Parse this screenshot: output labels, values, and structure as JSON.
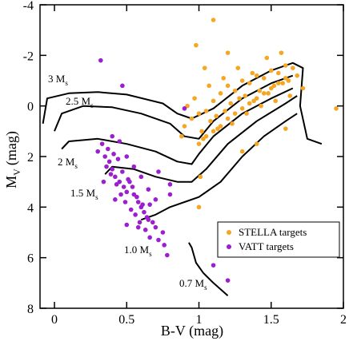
{
  "chart_data": {
    "type": "scatter",
    "xlabel": "B-V (mag)",
    "ylabel": {
      "text": "M",
      "sub": "V",
      "unit": "(mag)"
    },
    "xlim": [
      -0.1,
      2.0
    ],
    "ylim": [
      -4,
      8
    ],
    "y_inverted": true,
    "xticks": [
      0,
      0.5,
      1,
      1.5,
      2
    ],
    "yticks": [
      -4,
      -2,
      0,
      2,
      4,
      6,
      8
    ],
    "legend": "lower right",
    "series": [
      {
        "name": "STELLA targets",
        "color": "#f5a623",
        "x": [
          0.9,
          0.95,
          1.0,
          1.02,
          1.05,
          1.08,
          1.1,
          1.12,
          1.15,
          1.18,
          1.2,
          1.22,
          1.25,
          1.28,
          1.3,
          1.32,
          1.35,
          1.38,
          1.4,
          1.42,
          1.45,
          1.48,
          1.5,
          1.52,
          1.55,
          1.58,
          1.6,
          1.62,
          1.65,
          1.68,
          1.0,
          1.05,
          1.1,
          1.15,
          1.2,
          1.25,
          1.3,
          1.35,
          1.4,
          1.45,
          1.5,
          1.55,
          1.6,
          0.92,
          0.97,
          1.03,
          1.07,
          1.13,
          1.17,
          1.23,
          1.27,
          1.33,
          1.37,
          1.43,
          1.47,
          1.53,
          1.57,
          1.63,
          1.72,
          1.95,
          1.1,
          1.04,
          0.98,
          1.0,
          1.01,
          1.3,
          1.6,
          0.88,
          1.4,
          1.2
        ],
        "y": [
          0.8,
          0.5,
          0.3,
          1.0,
          0.2,
          0.6,
          -0.2,
          0.4,
          -0.5,
          0.2,
          -0.8,
          -0.1,
          -0.6,
          -0.3,
          -1.0,
          -0.4,
          -0.9,
          -0.2,
          -1.2,
          -0.6,
          -1.1,
          -0.5,
          -1.4,
          -0.8,
          -1.3,
          -0.9,
          -1.6,
          -1.0,
          -1.5,
          -1.2,
          1.5,
          1.2,
          1.0,
          0.8,
          0.5,
          0.3,
          0.1,
          -0.1,
          -0.3,
          -0.5,
          -0.7,
          -0.9,
          -1.1,
          0.0,
          -0.3,
          1.3,
          -0.8,
          0.9,
          -1.1,
          0.7,
          -1.5,
          0.3,
          -1.3,
          0.0,
          -1.9,
          -0.2,
          -2.1,
          -0.4,
          -0.7,
          0.1,
          -3.4,
          -1.5,
          -2.4,
          4.0,
          2.8,
          1.8,
          0.9,
          1.2,
          1.5,
          -2.1
        ]
      },
      {
        "name": "VATT targets",
        "color": "#9b1fd0",
        "x": [
          0.32,
          0.47,
          0.9,
          0.3,
          0.35,
          0.38,
          0.4,
          0.42,
          0.45,
          0.48,
          0.5,
          0.52,
          0.55,
          0.58,
          0.6,
          0.62,
          0.65,
          0.7,
          0.75,
          0.8,
          0.33,
          0.37,
          0.41,
          0.44,
          0.47,
          0.51,
          0.54,
          0.57,
          0.61,
          0.64,
          0.68,
          0.72,
          0.36,
          0.39,
          0.43,
          0.46,
          0.49,
          0.53,
          0.56,
          0.59,
          0.63,
          0.66,
          0.4,
          0.45,
          0.5,
          0.55,
          0.6,
          0.65,
          0.7,
          0.78,
          1.1,
          1.2,
          0.76,
          0.34,
          0.42,
          0.5,
          0.58,
          0.66,
          0.72,
          0.8
        ],
        "y": [
          -1.8,
          -0.8,
          0.1,
          1.8,
          2.0,
          2.2,
          2.5,
          2.8,
          3.0,
          3.2,
          3.4,
          3.0,
          3.5,
          3.8,
          4.0,
          4.2,
          4.5,
          4.8,
          5.0,
          3.5,
          1.5,
          1.7,
          1.9,
          2.1,
          2.6,
          2.9,
          3.2,
          3.6,
          3.9,
          4.4,
          4.6,
          5.3,
          2.4,
          2.7,
          3.1,
          3.5,
          3.8,
          4.1,
          4.3,
          4.6,
          4.9,
          5.2,
          1.2,
          1.4,
          2.0,
          2.4,
          2.8,
          3.3,
          3.7,
          5.9,
          6.3,
          6.9,
          5.5,
          3.0,
          3.7,
          4.7,
          4.8,
          3.9,
          2.6,
          3.1
        ]
      }
    ],
    "tracks": [
      {
        "color": "#000000",
        "x": [
          -0.08,
          -0.05,
          0.1,
          0.3,
          0.5,
          0.75,
          0.85,
          0.95,
          1.1,
          1.3,
          1.5,
          1.65,
          1.72,
          1.7,
          1.75,
          1.85
        ],
        "y": [
          0.7,
          -0.3,
          -0.5,
          -0.55,
          -0.45,
          -0.1,
          0.3,
          0.5,
          0.1,
          -0.8,
          -1.4,
          -1.7,
          -1.5,
          0.0,
          1.3,
          1.5
        ]
      },
      {
        "color": "#000000",
        "x": [
          0.0,
          0.05,
          0.2,
          0.4,
          0.6,
          0.8,
          0.9,
          1.0,
          1.1,
          1.3,
          1.5,
          1.65
        ],
        "y": [
          1.0,
          0.3,
          0.0,
          0.05,
          0.3,
          0.7,
          1.2,
          1.3,
          0.6,
          -0.3,
          -0.9,
          -1.2
        ]
      },
      {
        "color": "#000000",
        "x": [
          0.05,
          0.1,
          0.3,
          0.5,
          0.7,
          0.85,
          0.95,
          1.0,
          1.1,
          1.3,
          1.5,
          1.65
        ],
        "y": [
          1.7,
          1.4,
          1.3,
          1.5,
          1.8,
          2.2,
          2.3,
          1.9,
          1.2,
          0.3,
          -0.3,
          -0.7
        ]
      },
      {
        "color": "#000000",
        "x": [
          0.35,
          0.4,
          0.55,
          0.7,
          0.85,
          0.95,
          1.05,
          1.2,
          1.4,
          1.6,
          1.68
        ],
        "y": [
          2.7,
          2.4,
          2.5,
          2.8,
          3.0,
          3.0,
          2.5,
          1.5,
          0.6,
          -0.1,
          -0.4
        ]
      },
      {
        "color": "#000000",
        "x": [
          0.6,
          0.7,
          0.8,
          0.9,
          1.0,
          1.15,
          1.3,
          1.45,
          1.6,
          1.68
        ],
        "y": [
          4.5,
          4.3,
          4.0,
          3.8,
          3.6,
          3.0,
          2.0,
          1.2,
          0.6,
          0.3
        ]
      },
      {
        "color": "#000000",
        "x": [
          0.93,
          0.95,
          0.98,
          1.03,
          1.1,
          1.2
        ],
        "y": [
          5.4,
          5.6,
          6.2,
          6.6,
          7.0,
          7.5
        ]
      }
    ],
    "annotations": [
      {
        "text": "3 M",
        "sub": "s"
      },
      {
        "text": "2.5 M",
        "sub": "s"
      },
      {
        "text": "2 M",
        "sub": "s"
      },
      {
        "text": "1.5 M",
        "sub": "s"
      },
      {
        "text": "1.0 M",
        "sub": "s"
      },
      {
        "text": "0.7 M",
        "sub": "s"
      }
    ]
  }
}
